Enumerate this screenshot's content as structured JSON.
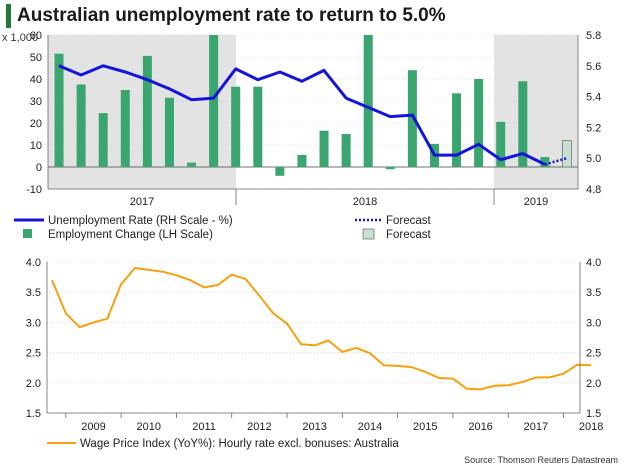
{
  "title": "Australian unemployment rate to return to 5.0%",
  "source": "Source: Thomson Reuters Datastream",
  "colors": {
    "bar": "#3aa56f",
    "forecast_bar": "#c9dfd3",
    "forecast_bar_edge": "#6a7f72",
    "line": "#1414d9",
    "wage_line": "#f5a00f",
    "shade": "#e3e3e3"
  },
  "chart_data": [
    {
      "type": "bar+line",
      "left_axis_unit": "x 1,000",
      "left_ticks": [
        "60",
        "50",
        "40",
        "30",
        "20",
        "10",
        "0",
        "-10"
      ],
      "right_ticks": [
        "5.8",
        "5.6",
        "5.4",
        "5.2",
        "5.0",
        "4.8"
      ],
      "ylim_left": [
        -10,
        60
      ],
      "ylim_right": [
        4.8,
        5.8
      ],
      "year_labels": [
        "2017",
        "2018",
        "2019"
      ],
      "month_index_start": "2016-12",
      "employment_change": [
        51.5,
        37.5,
        24.5,
        35,
        50.5,
        31.5,
        2,
        60,
        36.5,
        36.5,
        -4,
        5.5,
        16.5,
        15,
        60,
        -1,
        44,
        10.5,
        33.5,
        40,
        20.5,
        39,
        4.5
      ],
      "employment_change_forecast": 12,
      "unemployment_rate": [
        5.6,
        5.54,
        5.6,
        5.56,
        5.51,
        5.45,
        5.38,
        5.39,
        5.58,
        5.51,
        5.56,
        5.5,
        5.57,
        5.39,
        5.33,
        5.27,
        5.28,
        5.02,
        5.02,
        5.09,
        4.99,
        5.03,
        4.96
      ],
      "unemployment_forecast": [
        4.96,
        5.0
      ],
      "shaded_periods": [
        "2016-12 to 2017-08",
        "2018-12 to 2019-02"
      ],
      "legend": [
        {
          "label": "Unemployment Rate (RH Scale - %)",
          "kind": "solid-line"
        },
        {
          "label": "Employment Change (LH Scale)",
          "kind": "bar"
        },
        {
          "label": "Forecast",
          "kind": "dotted-line"
        },
        {
          "label": "Forecast",
          "kind": "forecast-bar"
        }
      ]
    },
    {
      "type": "line",
      "left_ticks": [
        "4.0",
        "3.5",
        "3.0",
        "2.5",
        "2.0",
        "1.5"
      ],
      "right_ticks": [
        "4.0",
        "3.5",
        "3.0",
        "2.5",
        "2.0",
        "1.5"
      ],
      "ylim": [
        1.5,
        4.0
      ],
      "year_labels": [
        "2009",
        "2010",
        "2011",
        "2012",
        "2013",
        "2014",
        "2015",
        "2016",
        "2017",
        "2018"
      ],
      "quarters_start": "2008-Q4",
      "wage_price_index": [
        3.7,
        3.15,
        2.92,
        3.0,
        3.06,
        3.63,
        3.9,
        3.87,
        3.84,
        3.78,
        3.7,
        3.58,
        3.62,
        3.79,
        3.72,
        3.44,
        3.15,
        2.98,
        2.64,
        2.62,
        2.7,
        2.51,
        2.58,
        2.49,
        2.29,
        2.28,
        2.26,
        2.18,
        2.08,
        2.07,
        1.9,
        1.89,
        1.95,
        1.96,
        2.01,
        2.09,
        2.09,
        2.15,
        2.3,
        2.29
      ],
      "legend": [
        {
          "label": "Wage Price Index (YoY%): Hourly rate excl. bonuses: Australia",
          "kind": "line"
        }
      ]
    }
  ]
}
